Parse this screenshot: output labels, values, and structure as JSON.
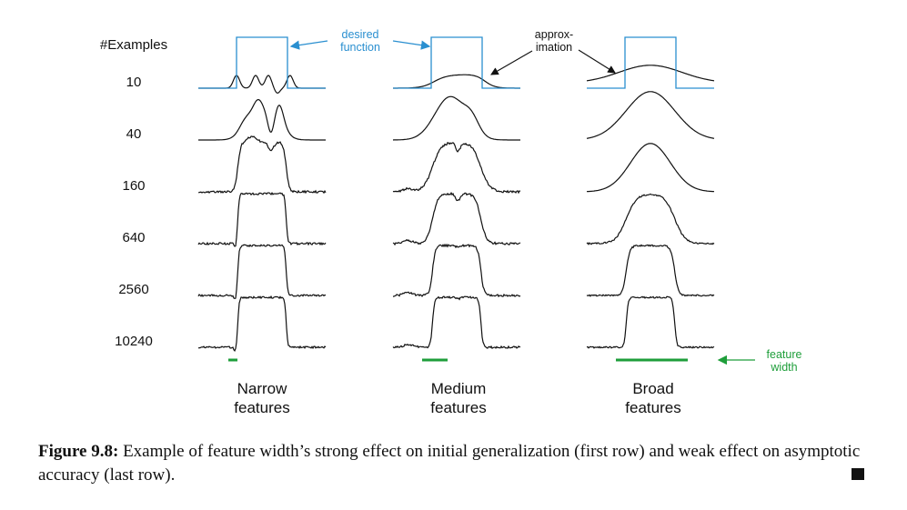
{
  "figure": {
    "row_header": "#Examples",
    "rows": [
      "10",
      "40",
      "160",
      "640",
      "2560",
      "10240"
    ],
    "columns": [
      {
        "line1": "Narrow",
        "line2": "features"
      },
      {
        "line1": "Medium",
        "line2": "features"
      },
      {
        "line1": "Broad",
        "line2": "features"
      }
    ],
    "annotations": {
      "desired_line1": "desired",
      "desired_line2": "function",
      "approx_line1": "approx-",
      "approx_line2": "imation",
      "feature_line1": "feature",
      "feature_line2": "width"
    },
    "colors": {
      "desired": "#2a8fd0",
      "feature_width": "#1e9e3a",
      "approximation": "#111111"
    }
  },
  "caption": {
    "label": "Figure 9.8:",
    "text": " Example of feature width’s strong effect on initial generalization (first row) and weak effect on asymptotic accuracy (last row)."
  }
}
